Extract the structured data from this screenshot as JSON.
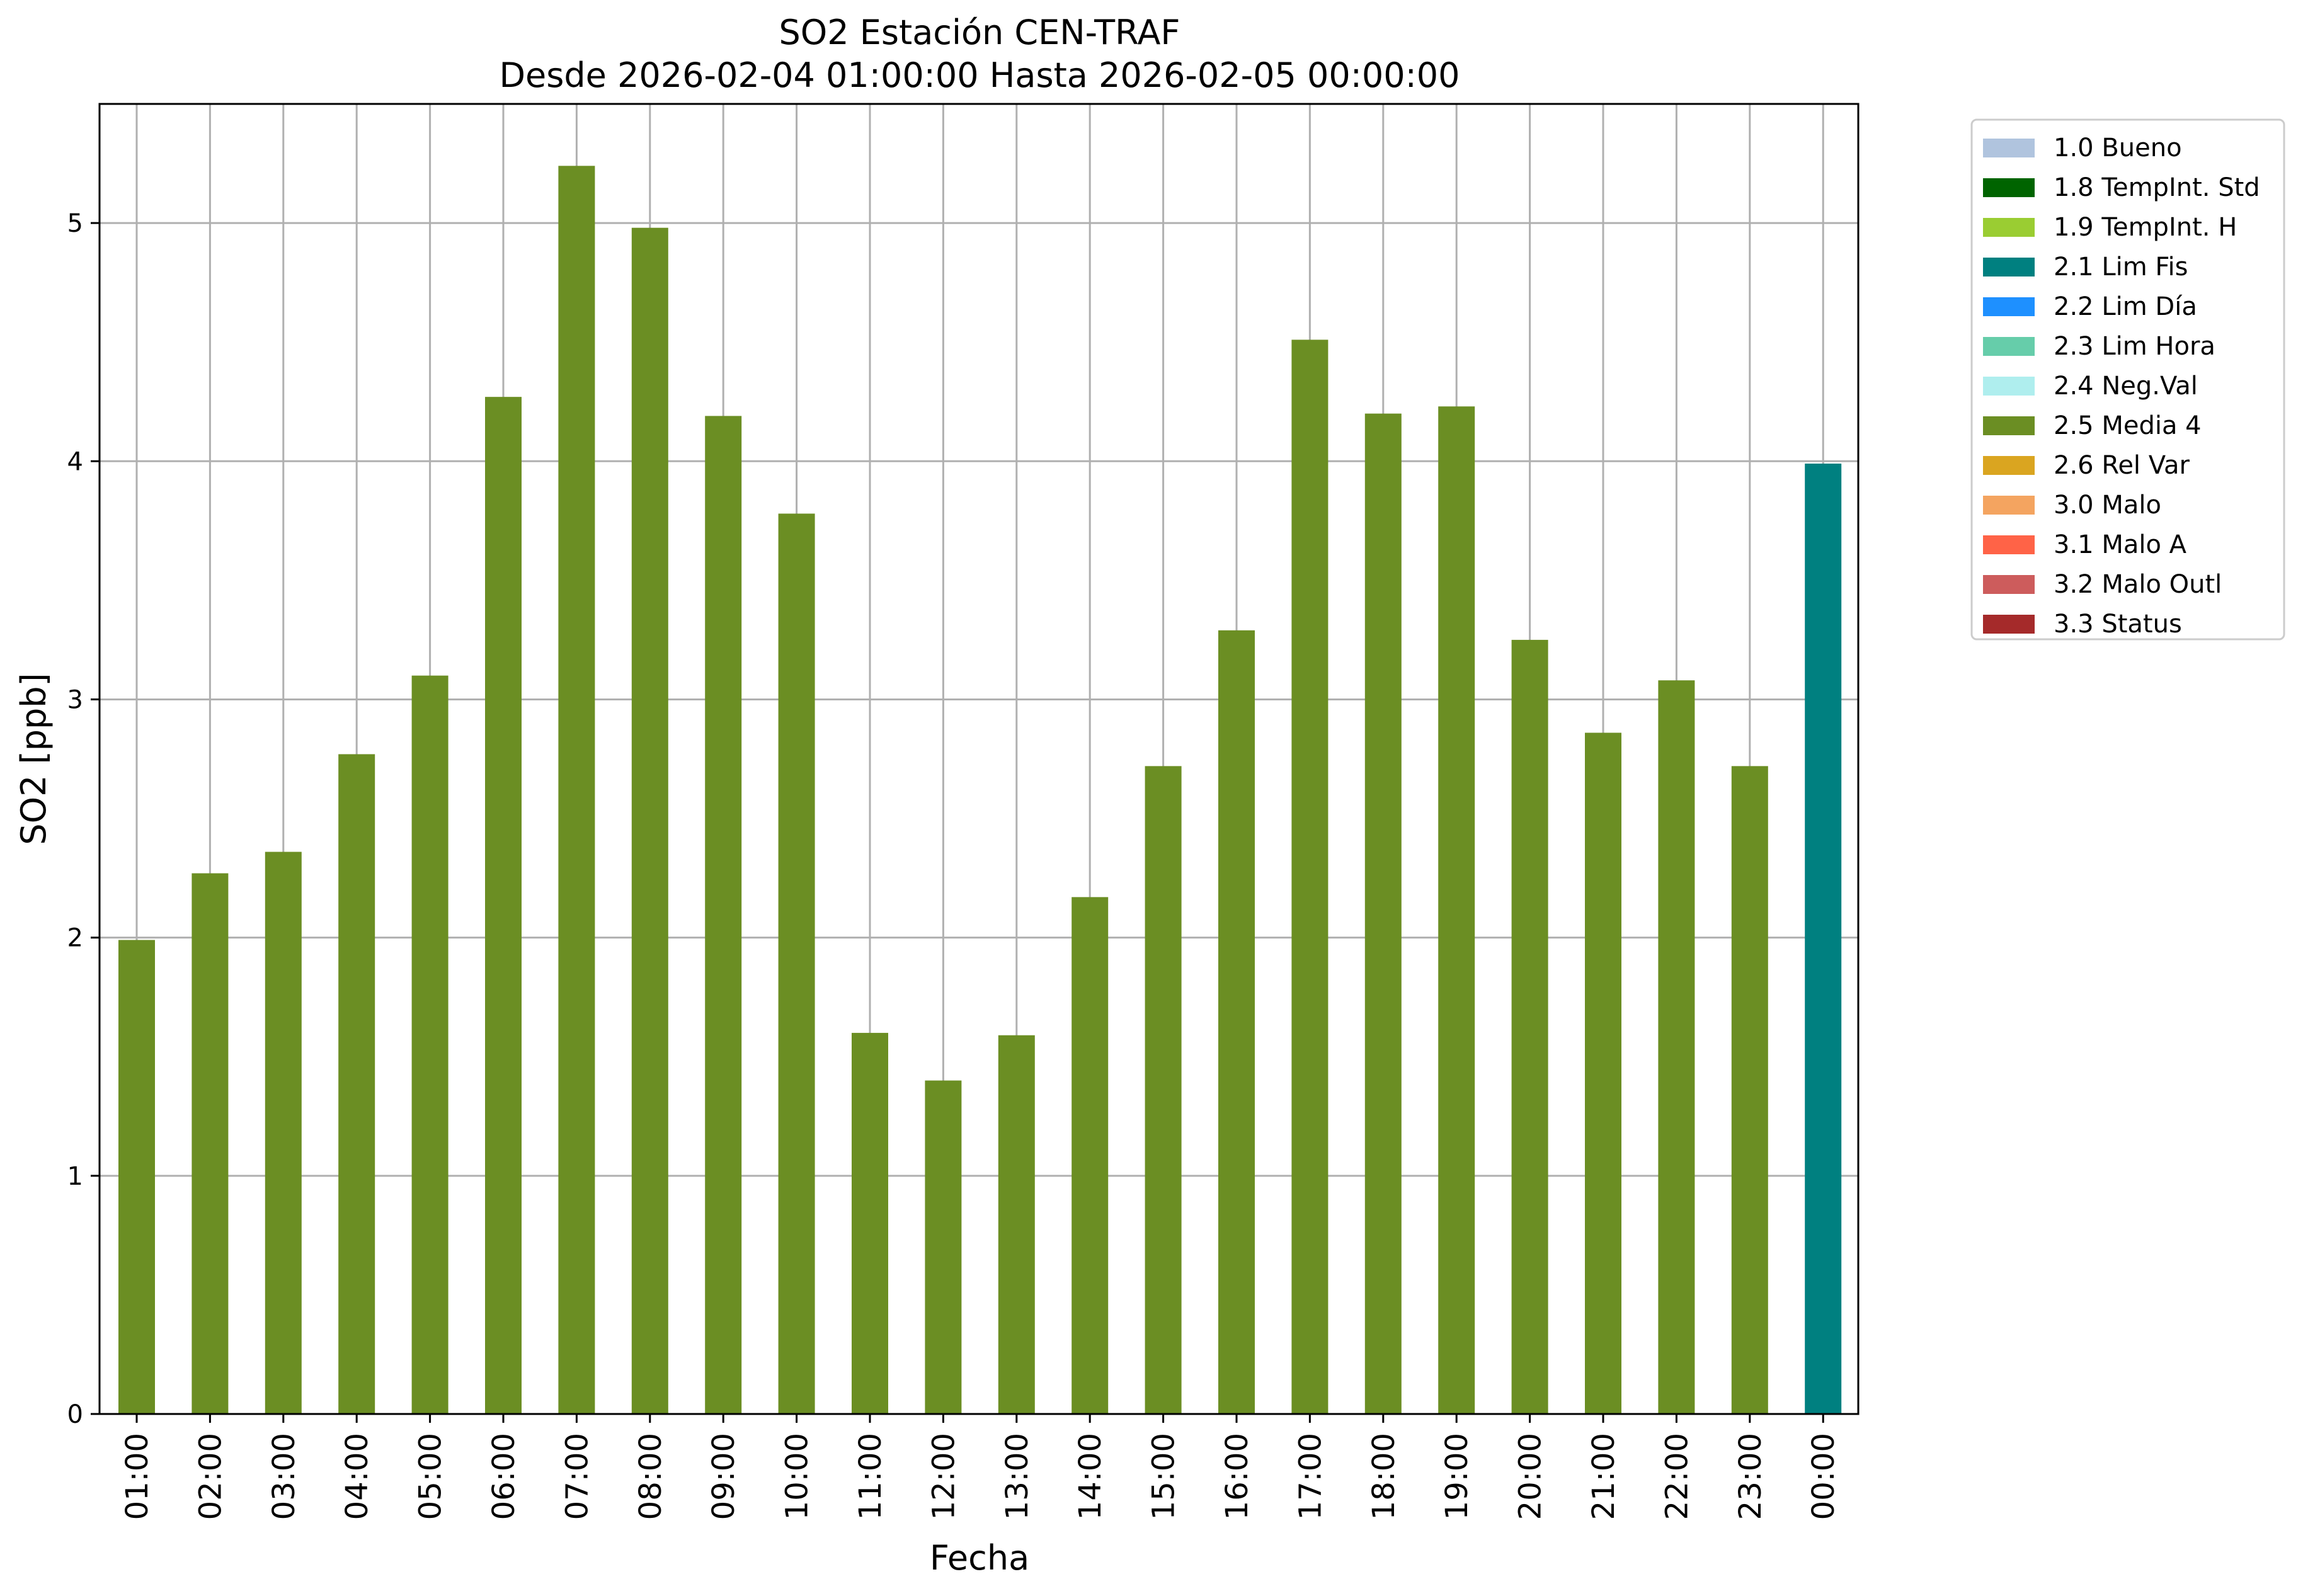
{
  "chart_data": {
    "type": "bar",
    "title": "SO2 Estación CEN-TRAF",
    "subtitle": "Desde 2026-02-04 01:00:00 Hasta 2026-02-05 00:00:00",
    "xlabel": "Fecha",
    "ylabel": "SO2 [ppb]",
    "ylim": [
      0,
      5.5
    ],
    "yticks": [
      0,
      1,
      2,
      3,
      4,
      5
    ],
    "grid": true,
    "legend_position": "outside-right-top",
    "categories": [
      "01:00",
      "02:00",
      "03:00",
      "04:00",
      "05:00",
      "06:00",
      "07:00",
      "08:00",
      "09:00",
      "10:00",
      "11:00",
      "12:00",
      "13:00",
      "14:00",
      "15:00",
      "16:00",
      "17:00",
      "18:00",
      "19:00",
      "20:00",
      "21:00",
      "22:00",
      "23:00",
      "00:00"
    ],
    "values": [
      1.99,
      2.27,
      2.36,
      2.77,
      3.1,
      4.27,
      5.24,
      4.98,
      4.19,
      3.78,
      1.6,
      1.4,
      1.59,
      2.17,
      2.72,
      3.29,
      4.51,
      4.2,
      4.23,
      3.25,
      2.86,
      3.08,
      2.72,
      3.99
    ],
    "bar_flags": [
      "2.5 Media 4",
      "2.5 Media 4",
      "2.5 Media 4",
      "2.5 Media 4",
      "2.5 Media 4",
      "2.5 Media 4",
      "2.5 Media 4",
      "2.5 Media 4",
      "2.5 Media 4",
      "2.5 Media 4",
      "2.5 Media 4",
      "2.5 Media 4",
      "2.5 Media 4",
      "2.5 Media 4",
      "2.5 Media 4",
      "2.5 Media 4",
      "2.5 Media 4",
      "2.5 Media 4",
      "2.5 Media 4",
      "2.5 Media 4",
      "2.5 Media 4",
      "2.5 Media 4",
      "2.5 Media 4",
      "2.1 Lim Fis"
    ],
    "legend": [
      {
        "label": "1.0 Bueno",
        "color": "#b0c4de"
      },
      {
        "label": "1.8 TempInt. Std",
        "color": "#006400"
      },
      {
        "label": "1.9 TempInt. H",
        "color": "#9acd32"
      },
      {
        "label": "2.1 Lim Fis",
        "color": "#008080"
      },
      {
        "label": "2.2 Lim Día",
        "color": "#1e90ff"
      },
      {
        "label": "2.3 Lim Hora",
        "color": "#66cdaa"
      },
      {
        "label": "2.4 Neg.Val",
        "color": "#afeeee"
      },
      {
        "label": "2.5 Media 4",
        "color": "#6b8e23"
      },
      {
        "label": "2.6 Rel Var",
        "color": "#daa520"
      },
      {
        "label": "3.0 Malo",
        "color": "#f4a460"
      },
      {
        "label": "3.1 Malo A",
        "color": "#ff6347"
      },
      {
        "label": "3.2 Malo Outl",
        "color": "#cd5c5c"
      },
      {
        "label": "3.3 Status",
        "color": "#a52a2a"
      }
    ]
  }
}
